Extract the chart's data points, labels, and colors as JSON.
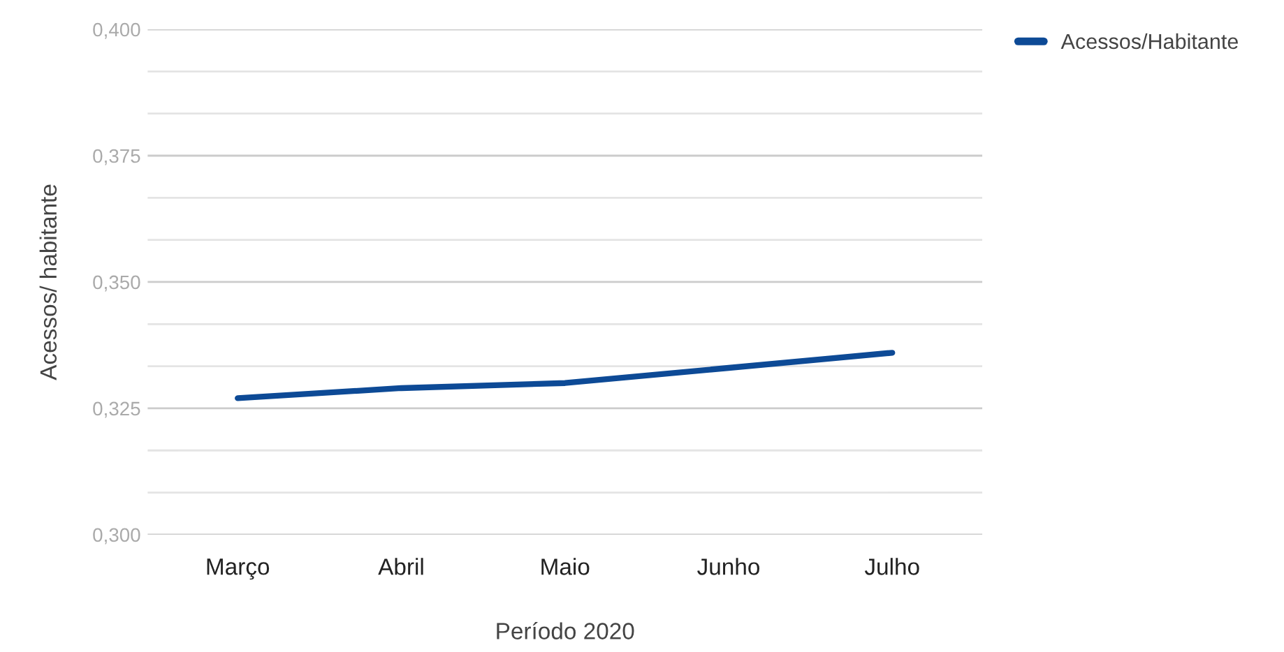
{
  "chart_data": {
    "type": "line",
    "xlabel": "Período 2020",
    "ylabel": "Acessos/ habitante",
    "categories": [
      "Março",
      "Abril",
      "Maio",
      "Junho",
      "Julho"
    ],
    "series": [
      {
        "name": "Acessos/Habitante",
        "color": "#0d4a96",
        "values": [
          0.327,
          0.329,
          0.33,
          0.333,
          0.336
        ]
      }
    ],
    "ylim": [
      0.3,
      0.4
    ],
    "yticks": [
      {
        "value": 0.3,
        "label": "0,300"
      },
      {
        "value": 0.325,
        "label": "0,325"
      },
      {
        "value": 0.35,
        "label": "0,350"
      },
      {
        "value": 0.375,
        "label": "0,375"
      },
      {
        "value": 0.4,
        "label": "0,400"
      }
    ],
    "grid": "y",
    "legend": "top right",
    "marker": "none",
    "line_style": "solid"
  }
}
